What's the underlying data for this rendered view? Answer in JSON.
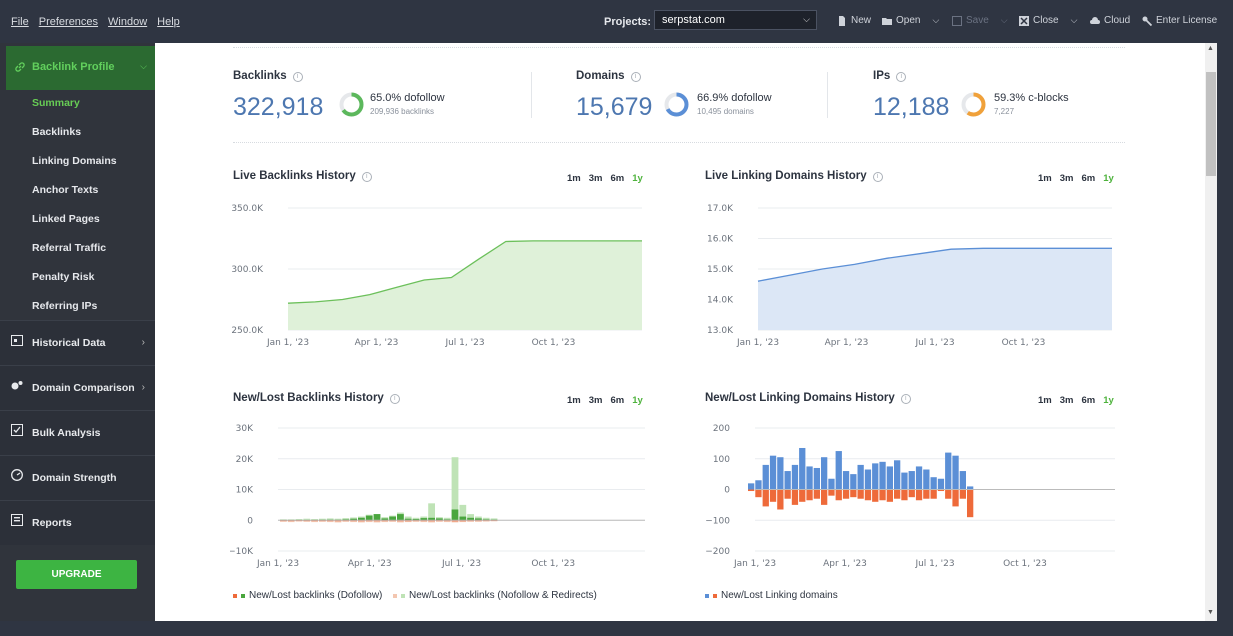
{
  "menu": [
    "File",
    "Preferences",
    "Window",
    "Help"
  ],
  "toolbar": {
    "projects_label": "Projects:",
    "project_value": "serpstat.com",
    "new": "New",
    "open": "Open",
    "save": "Save",
    "close": "Close",
    "cloud": "Cloud",
    "license": "Enter License"
  },
  "sidebar": {
    "section": "Backlink Profile",
    "items": [
      "Summary",
      "Backlinks",
      "Linking Domains",
      "Anchor Texts",
      "Linked Pages",
      "Referral Traffic",
      "Penalty Risk",
      "Referring IPs"
    ],
    "sections": [
      "Historical Data",
      "Domain Comparison",
      "Bulk Analysis",
      "Domain Strength",
      "Reports"
    ],
    "upgrade": "UPGRADE"
  },
  "stats": {
    "backlinks": {
      "title": "Backlinks",
      "value": "322,918",
      "pct": "65.0% dofollow",
      "sub": "209,936 backlinks",
      "ratio": 0.65,
      "color": "#5cb85c"
    },
    "domains": {
      "title": "Domains",
      "value": "15,679",
      "pct": "66.9% dofollow",
      "sub": "10,495 domains",
      "ratio": 0.669,
      "color": "#5b8fd6"
    },
    "ips": {
      "title": "IPs",
      "value": "12,188",
      "pct": "59.3% c-blocks",
      "sub": "7,227",
      "ratio": 0.593,
      "color": "#f0a13a"
    }
  },
  "ranges": [
    "1m",
    "3m",
    "6m",
    "1y"
  ],
  "charts": {
    "live_backlinks": {
      "title": "Live Backlinks History",
      "yticks": [
        "350.0K",
        "300.0K",
        "250.0K"
      ],
      "xticks": [
        "Jan 1, '23",
        "Apr 1, '23",
        "Jul 1, '23",
        "Oct 1, '23"
      ]
    },
    "live_domains": {
      "title": "Live Linking Domains History",
      "yticks": [
        "17.0K",
        "16.0K",
        "15.0K",
        "14.0K",
        "13.0K"
      ],
      "xticks": [
        "Jan 1, '23",
        "Apr 1, '23",
        "Jul 1, '23",
        "Oct 1, '23"
      ]
    },
    "newlost_backlinks": {
      "title": "New/Lost Backlinks History",
      "yticks": [
        "30K",
        "20K",
        "10K",
        "0",
        "−10K"
      ],
      "xticks": [
        "Jan 1, '23",
        "Apr 1, '23",
        "Jul 1, '23",
        "Oct 1, '23"
      ],
      "legend": [
        "New/Lost backlinks (Dofollow)",
        "New/Lost backlinks (Nofollow & Redirects)"
      ]
    },
    "newlost_domains": {
      "title": "New/Lost Linking Domains History",
      "yticks": [
        "200",
        "100",
        "0",
        "−100",
        "−200"
      ],
      "xticks": [
        "Jan 1, '23",
        "Apr 1, '23",
        "Jul 1, '23",
        "Oct 1, '23"
      ],
      "legend": [
        "New/Lost Linking domains"
      ]
    }
  },
  "chart_data": [
    {
      "type": "area",
      "title": "Live Backlinks History",
      "ylim": [
        250000,
        350000
      ],
      "x": [
        "Jan 1, '23",
        "Feb 1, '23",
        "Mar 1, '23",
        "Apr 1, '23",
        "May 1, '23",
        "Jun 1, '23",
        "Jun 25, '23",
        "Jul 1, '23",
        "Jul 15, '23",
        "Aug 1, '23",
        "Sep 1, '23",
        "Oct 1, '23",
        "Nov 1, '23",
        "Dec 1, '23"
      ],
      "values": [
        272000,
        273000,
        275000,
        279000,
        285000,
        291000,
        293000,
        308000,
        322500,
        323000,
        323000,
        323000,
        323000,
        323000
      ]
    },
    {
      "type": "area",
      "title": "Live Linking Domains History",
      "ylim": [
        13000,
        17000
      ],
      "x": [
        "Jan 1, '23",
        "Feb 1, '23",
        "Mar 1, '23",
        "Apr 1, '23",
        "May 1, '23",
        "Jun 1, '23",
        "Jul 1, '23",
        "Aug 1, '23",
        "Sep 1, '23",
        "Oct 1, '23",
        "Nov 1, '23",
        "Dec 1, '23"
      ],
      "values": [
        14600,
        14800,
        15000,
        15150,
        15350,
        15500,
        15650,
        15680,
        15680,
        15680,
        15680,
        15680
      ]
    },
    {
      "type": "bar",
      "title": "New/Lost Backlinks History",
      "ylim": [
        -10000,
        30000
      ],
      "series": [
        {
          "name": "New/Lost backlinks (Dofollow)",
          "new": [
            100,
            100,
            100,
            100,
            100,
            150,
            200,
            150,
            300,
            500,
            800,
            1500,
            2000,
            600,
            1200,
            2000,
            500,
            400,
            700,
            800,
            600,
            300,
            3500,
            1200,
            800,
            600,
            300,
            200
          ],
          "lost": [
            -200,
            -200,
            -150,
            -200,
            -200,
            -250,
            -200,
            -300,
            -200,
            -250,
            -300,
            -200,
            -300,
            -250,
            -200,
            -300,
            -300,
            -200,
            -250,
            -300,
            -200,
            -250,
            -350,
            -300,
            -200,
            -200,
            -150,
            -100
          ]
        },
        {
          "name": "New/Lost backlinks (Nofollow & Redirects)",
          "new": [
            300,
            300,
            400,
            500,
            400,
            500,
            600,
            500,
            700,
            900,
            1200,
            1800,
            2000,
            1000,
            1500,
            2500,
            1200,
            800,
            1200,
            5500,
            1000,
            800,
            20500,
            5000,
            2000,
            1200,
            800,
            600
          ],
          "lost": [
            -500,
            -600,
            -400,
            -500,
            -600,
            -500,
            -600,
            -700,
            -500,
            -600,
            -700,
            -600,
            -700,
            -600,
            -500,
            -700,
            -600,
            -500,
            -600,
            -700,
            -500,
            -600,
            -700,
            -600,
            -500,
            -500,
            -400,
            -300
          ]
        }
      ]
    },
    {
      "type": "bar",
      "title": "New/Lost Linking Domains History",
      "ylim": [
        -200,
        200
      ],
      "series": [
        {
          "name": "New",
          "values": [
            20,
            30,
            80,
            110,
            105,
            60,
            80,
            135,
            75,
            70,
            105,
            35,
            125,
            60,
            50,
            80,
            65,
            85,
            90,
            75,
            95,
            55,
            60,
            75,
            65,
            40,
            35,
            120,
            110,
            60,
            10
          ]
        },
        {
          "name": "Lost",
          "values": [
            -5,
            -25,
            -55,
            -40,
            -65,
            -30,
            -50,
            -40,
            -35,
            -30,
            -50,
            -20,
            -35,
            -30,
            -25,
            -30,
            -35,
            -40,
            -35,
            -40,
            -30,
            -35,
            -25,
            -35,
            -30,
            -30,
            -5,
            -30,
            -55,
            -30,
            -90
          ]
        }
      ]
    }
  ]
}
